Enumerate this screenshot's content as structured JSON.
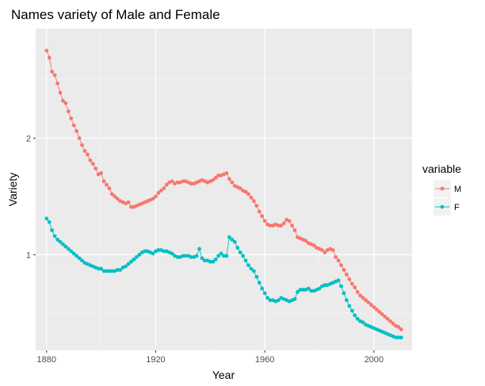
{
  "chart_data": {
    "type": "line",
    "title": "Names variety of Male and Female",
    "xlabel": "Year",
    "ylabel": "Variety",
    "xlim": [
      1876,
      2014
    ],
    "ylim": [
      0.18,
      2.94
    ],
    "x_ticks": [
      1880,
      1920,
      1960,
      2000
    ],
    "x_tick_labels": [
      "1880",
      "1920",
      "1960",
      "2000"
    ],
    "y_ticks": [
      1,
      2
    ],
    "y_tick_labels": [
      "1",
      "2"
    ],
    "grid": true,
    "background": "#ebebeb",
    "legend": {
      "title": "variable",
      "position": "right",
      "entries": [
        "M",
        "F"
      ]
    },
    "series": [
      {
        "name": "M",
        "color": "#f8766d",
        "points": [
          [
            1880,
            2.75
          ],
          [
            1881,
            2.69
          ],
          [
            1882,
            2.57
          ],
          [
            1883,
            2.54
          ],
          [
            1884,
            2.47
          ],
          [
            1885,
            2.39
          ],
          [
            1886,
            2.32
          ],
          [
            1887,
            2.3
          ],
          [
            1888,
            2.23
          ],
          [
            1889,
            2.17
          ],
          [
            1890,
            2.11
          ],
          [
            1891,
            2.06
          ],
          [
            1892,
            2.0
          ],
          [
            1893,
            1.94
          ],
          [
            1894,
            1.89
          ],
          [
            1895,
            1.86
          ],
          [
            1896,
            1.81
          ],
          [
            1897,
            1.78
          ],
          [
            1898,
            1.74
          ],
          [
            1899,
            1.69
          ],
          [
            1900,
            1.7
          ],
          [
            1901,
            1.63
          ],
          [
            1902,
            1.6
          ],
          [
            1903,
            1.57
          ],
          [
            1904,
            1.52
          ],
          [
            1905,
            1.5
          ],
          [
            1906,
            1.48
          ],
          [
            1907,
            1.46
          ],
          [
            1908,
            1.45
          ],
          [
            1909,
            1.44
          ],
          [
            1910,
            1.45
          ],
          [
            1911,
            1.41
          ],
          [
            1912,
            1.41
          ],
          [
            1913,
            1.42
          ],
          [
            1914,
            1.43
          ],
          [
            1915,
            1.44
          ],
          [
            1916,
            1.45
          ],
          [
            1917,
            1.46
          ],
          [
            1918,
            1.47
          ],
          [
            1919,
            1.48
          ],
          [
            1920,
            1.5
          ],
          [
            1921,
            1.53
          ],
          [
            1922,
            1.55
          ],
          [
            1923,
            1.57
          ],
          [
            1924,
            1.6
          ],
          [
            1925,
            1.62
          ],
          [
            1926,
            1.63
          ],
          [
            1927,
            1.61
          ],
          [
            1928,
            1.62
          ],
          [
            1929,
            1.62
          ],
          [
            1930,
            1.63
          ],
          [
            1931,
            1.63
          ],
          [
            1932,
            1.62
          ],
          [
            1933,
            1.61
          ],
          [
            1934,
            1.61
          ],
          [
            1935,
            1.62
          ],
          [
            1936,
            1.63
          ],
          [
            1937,
            1.64
          ],
          [
            1938,
            1.63
          ],
          [
            1939,
            1.62
          ],
          [
            1940,
            1.63
          ],
          [
            1941,
            1.64
          ],
          [
            1942,
            1.66
          ],
          [
            1943,
            1.68
          ],
          [
            1944,
            1.68
          ],
          [
            1945,
            1.69
          ],
          [
            1946,
            1.7
          ],
          [
            1947,
            1.65
          ],
          [
            1948,
            1.62
          ],
          [
            1949,
            1.59
          ],
          [
            1950,
            1.58
          ],
          [
            1951,
            1.57
          ],
          [
            1952,
            1.55
          ],
          [
            1953,
            1.54
          ],
          [
            1954,
            1.52
          ],
          [
            1955,
            1.49
          ],
          [
            1956,
            1.46
          ],
          [
            1957,
            1.42
          ],
          [
            1958,
            1.37
          ],
          [
            1959,
            1.33
          ],
          [
            1960,
            1.29
          ],
          [
            1961,
            1.26
          ],
          [
            1962,
            1.25
          ],
          [
            1963,
            1.25
          ],
          [
            1964,
            1.26
          ],
          [
            1965,
            1.25
          ],
          [
            1966,
            1.25
          ],
          [
            1967,
            1.27
          ],
          [
            1968,
            1.3
          ],
          [
            1969,
            1.29
          ],
          [
            1970,
            1.25
          ],
          [
            1971,
            1.21
          ],
          [
            1972,
            1.15
          ],
          [
            1973,
            1.14
          ],
          [
            1974,
            1.13
          ],
          [
            1975,
            1.12
          ],
          [
            1976,
            1.1
          ],
          [
            1977,
            1.09
          ],
          [
            1978,
            1.08
          ],
          [
            1979,
            1.06
          ],
          [
            1980,
            1.05
          ],
          [
            1981,
            1.04
          ],
          [
            1982,
            1.02
          ],
          [
            1983,
            1.04
          ],
          [
            1984,
            1.05
          ],
          [
            1985,
            1.04
          ],
          [
            1986,
            0.98
          ],
          [
            1987,
            0.95
          ],
          [
            1988,
            0.91
          ],
          [
            1989,
            0.87
          ],
          [
            1990,
            0.83
          ],
          [
            1991,
            0.79
          ],
          [
            1992,
            0.75
          ],
          [
            1993,
            0.72
          ],
          [
            1994,
            0.68
          ],
          [
            1995,
            0.65
          ],
          [
            1996,
            0.63
          ],
          [
            1997,
            0.61
          ],
          [
            1998,
            0.59
          ],
          [
            1999,
            0.57
          ],
          [
            2000,
            0.55
          ],
          [
            2001,
            0.53
          ],
          [
            2002,
            0.51
          ],
          [
            2003,
            0.49
          ],
          [
            2004,
            0.47
          ],
          [
            2005,
            0.45
          ],
          [
            2006,
            0.43
          ],
          [
            2007,
            0.41
          ],
          [
            2008,
            0.39
          ],
          [
            2009,
            0.38
          ],
          [
            2010,
            0.36
          ]
        ]
      },
      {
        "name": "F",
        "color": "#00bfc4",
        "points": [
          [
            1880,
            1.31
          ],
          [
            1881,
            1.28
          ],
          [
            1882,
            1.21
          ],
          [
            1883,
            1.16
          ],
          [
            1884,
            1.13
          ],
          [
            1885,
            1.11
          ],
          [
            1886,
            1.09
          ],
          [
            1887,
            1.07
          ],
          [
            1888,
            1.05
          ],
          [
            1889,
            1.03
          ],
          [
            1890,
            1.01
          ],
          [
            1891,
            0.99
          ],
          [
            1892,
            0.97
          ],
          [
            1893,
            0.95
          ],
          [
            1894,
            0.93
          ],
          [
            1895,
            0.92
          ],
          [
            1896,
            0.91
          ],
          [
            1897,
            0.9
          ],
          [
            1898,
            0.89
          ],
          [
            1899,
            0.88
          ],
          [
            1900,
            0.88
          ],
          [
            1901,
            0.86
          ],
          [
            1902,
            0.86
          ],
          [
            1903,
            0.86
          ],
          [
            1904,
            0.86
          ],
          [
            1905,
            0.86
          ],
          [
            1906,
            0.87
          ],
          [
            1907,
            0.87
          ],
          [
            1908,
            0.89
          ],
          [
            1909,
            0.9
          ],
          [
            1910,
            0.92
          ],
          [
            1911,
            0.94
          ],
          [
            1912,
            0.96
          ],
          [
            1913,
            0.98
          ],
          [
            1914,
            1.0
          ],
          [
            1915,
            1.02
          ],
          [
            1916,
            1.03
          ],
          [
            1917,
            1.03
          ],
          [
            1918,
            1.02
          ],
          [
            1919,
            1.01
          ],
          [
            1920,
            1.03
          ],
          [
            1921,
            1.04
          ],
          [
            1922,
            1.04
          ],
          [
            1923,
            1.03
          ],
          [
            1924,
            1.03
          ],
          [
            1925,
            1.02
          ],
          [
            1926,
            1.01
          ],
          [
            1927,
            0.99
          ],
          [
            1928,
            0.98
          ],
          [
            1929,
            0.98
          ],
          [
            1930,
            0.99
          ],
          [
            1931,
            0.99
          ],
          [
            1932,
            0.99
          ],
          [
            1933,
            0.98
          ],
          [
            1934,
            0.98
          ],
          [
            1935,
            0.99
          ],
          [
            1936,
            1.05
          ],
          [
            1937,
            0.97
          ],
          [
            1938,
            0.95
          ],
          [
            1939,
            0.95
          ],
          [
            1940,
            0.94
          ],
          [
            1941,
            0.94
          ],
          [
            1942,
            0.96
          ],
          [
            1943,
            0.99
          ],
          [
            1944,
            1.01
          ],
          [
            1945,
            0.99
          ],
          [
            1946,
            0.99
          ],
          [
            1947,
            1.15
          ],
          [
            1948,
            1.13
          ],
          [
            1949,
            1.11
          ],
          [
            1950,
            1.06
          ],
          [
            1951,
            1.02
          ],
          [
            1952,
            0.99
          ],
          [
            1953,
            0.95
          ],
          [
            1954,
            0.91
          ],
          [
            1955,
            0.88
          ],
          [
            1956,
            0.86
          ],
          [
            1957,
            0.81
          ],
          [
            1958,
            0.76
          ],
          [
            1959,
            0.71
          ],
          [
            1960,
            0.67
          ],
          [
            1961,
            0.63
          ],
          [
            1962,
            0.61
          ],
          [
            1963,
            0.61
          ],
          [
            1964,
            0.6
          ],
          [
            1965,
            0.61
          ],
          [
            1966,
            0.63
          ],
          [
            1967,
            0.62
          ],
          [
            1968,
            0.61
          ],
          [
            1969,
            0.6
          ],
          [
            1970,
            0.61
          ],
          [
            1971,
            0.62
          ],
          [
            1972,
            0.68
          ],
          [
            1973,
            0.7
          ],
          [
            1974,
            0.7
          ],
          [
            1975,
            0.7
          ],
          [
            1976,
            0.71
          ],
          [
            1977,
            0.69
          ],
          [
            1978,
            0.69
          ],
          [
            1979,
            0.7
          ],
          [
            1980,
            0.71
          ],
          [
            1981,
            0.73
          ],
          [
            1982,
            0.74
          ],
          [
            1983,
            0.74
          ],
          [
            1984,
            0.75
          ],
          [
            1985,
            0.76
          ],
          [
            1986,
            0.77
          ],
          [
            1987,
            0.78
          ],
          [
            1988,
            0.73
          ],
          [
            1989,
            0.67
          ],
          [
            1990,
            0.61
          ],
          [
            1991,
            0.56
          ],
          [
            1992,
            0.52
          ],
          [
            1993,
            0.48
          ],
          [
            1994,
            0.45
          ],
          [
            1995,
            0.43
          ],
          [
            1996,
            0.42
          ],
          [
            1997,
            0.4
          ],
          [
            1998,
            0.39
          ],
          [
            1999,
            0.38
          ],
          [
            2000,
            0.37
          ],
          [
            2001,
            0.36
          ],
          [
            2002,
            0.35
          ],
          [
            2003,
            0.34
          ],
          [
            2004,
            0.33
          ],
          [
            2005,
            0.32
          ],
          [
            2006,
            0.31
          ],
          [
            2007,
            0.3
          ],
          [
            2008,
            0.29
          ],
          [
            2009,
            0.29
          ],
          [
            2010,
            0.29
          ]
        ]
      }
    ]
  }
}
